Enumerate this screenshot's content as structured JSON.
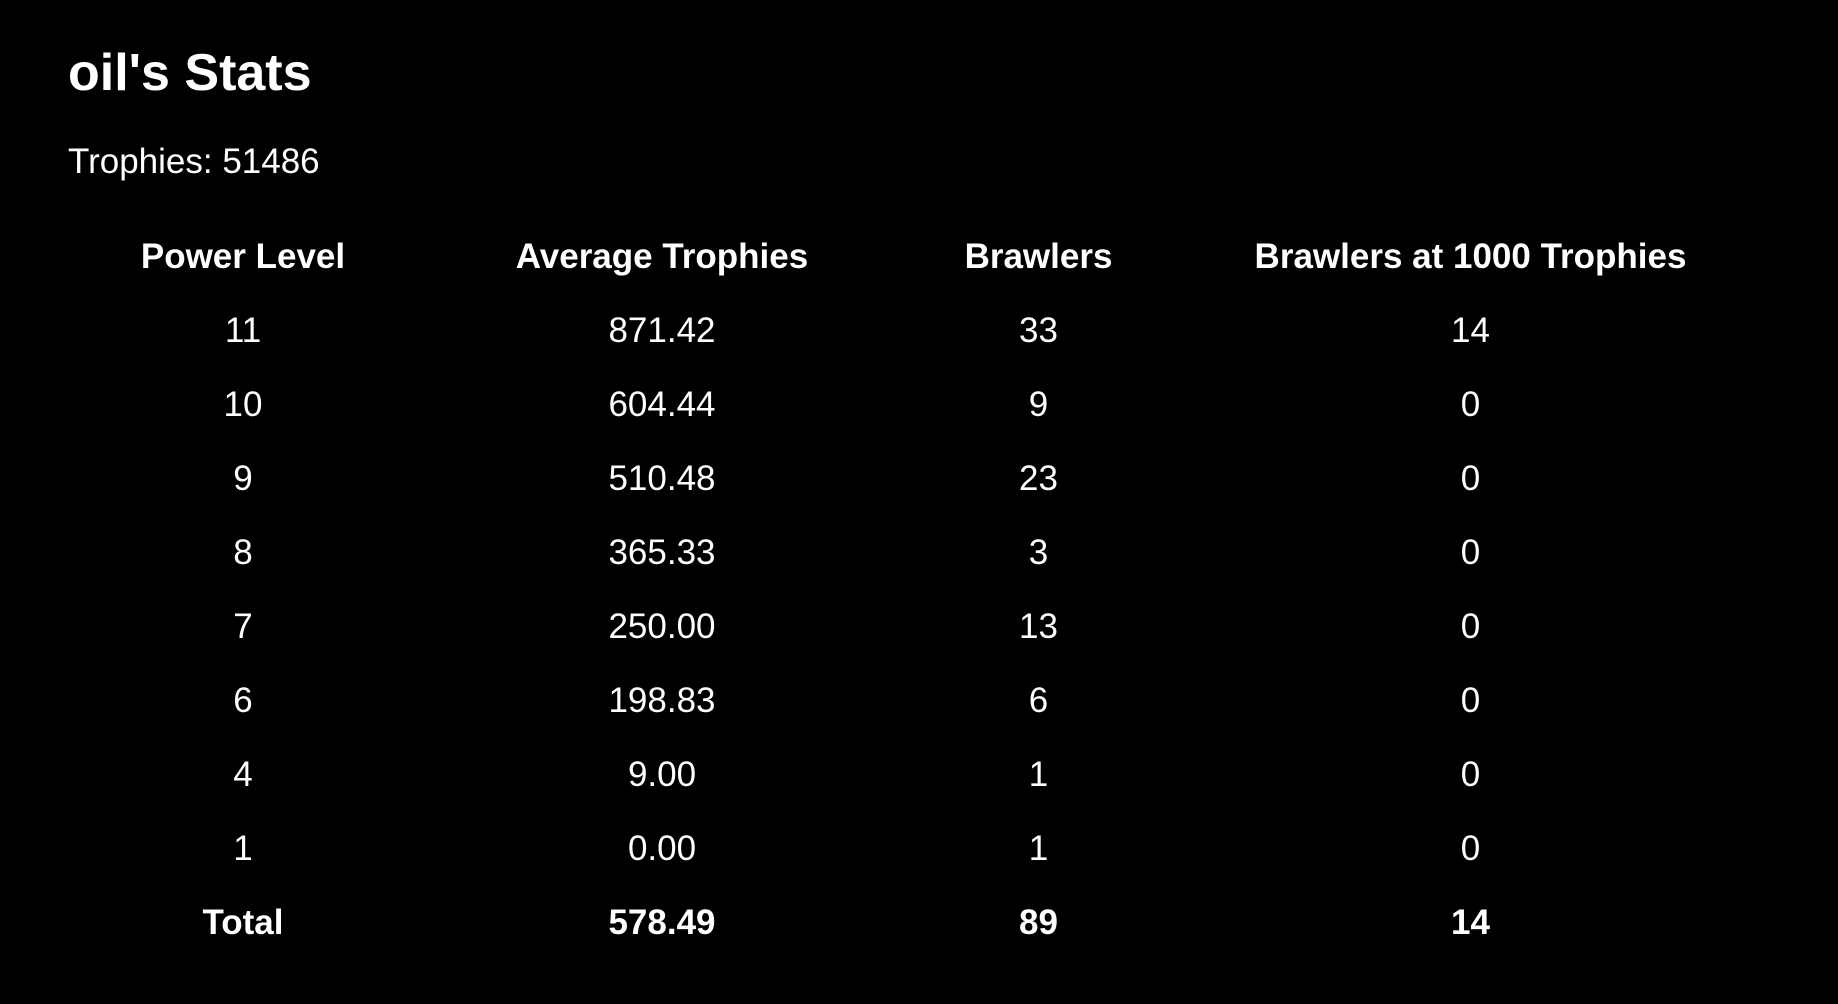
{
  "page": {
    "title": "oil's Stats",
    "trophies_text": "Trophies: 51486"
  },
  "table": {
    "headers": [
      "Power Level",
      "Average Trophies",
      "Brawlers",
      "Brawlers at 1000 Trophies"
    ],
    "rows": [
      [
        "11",
        "871.42",
        "33",
        "14"
      ],
      [
        "10",
        "604.44",
        "9",
        "0"
      ],
      [
        "9",
        "510.48",
        "23",
        "0"
      ],
      [
        "8",
        "365.33",
        "3",
        "0"
      ],
      [
        "7",
        "250.00",
        "13",
        "0"
      ],
      [
        "6",
        "198.83",
        "6",
        "0"
      ],
      [
        "4",
        "9.00",
        "1",
        "0"
      ],
      [
        "1",
        "0.00",
        "1",
        "0"
      ]
    ],
    "total": [
      "Total",
      "578.49",
      "89",
      "14"
    ]
  },
  "colors": {
    "background": "#000000",
    "text": "#ffffff"
  }
}
